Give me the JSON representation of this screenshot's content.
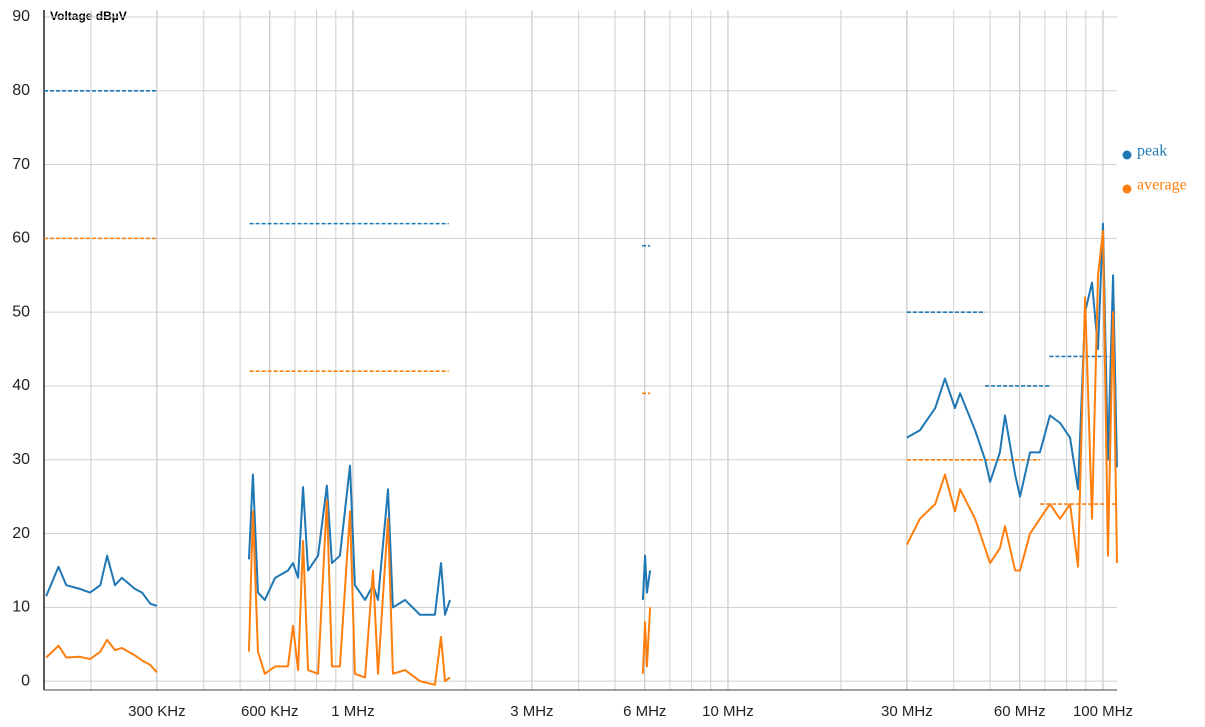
{
  "chart_data": {
    "type": "line",
    "y_label": "Voltage dBµV",
    "xlog": true,
    "xlim": [
      150000,
      109000000
    ],
    "ylim": [
      -1.2,
      90
    ],
    "yticks": [
      0,
      10,
      20,
      30,
      40,
      50,
      60,
      70,
      80,
      90
    ],
    "xticks": [
      {
        "value": 300000,
        "label": "300 KHz"
      },
      {
        "value": 600000,
        "label": "600 KHz"
      },
      {
        "value": 1000000,
        "label": "1 MHz"
      },
      {
        "value": 3000000,
        "label": "3 MHz"
      },
      {
        "value": 6000000,
        "label": "6 MHz"
      },
      {
        "value": 10000000,
        "label": "10 MHz"
      },
      {
        "value": 30000000,
        "label": "30 MHz"
      },
      {
        "value": 60000000,
        "label": "60 MHz"
      },
      {
        "value": 100000000,
        "label": "100 MHz"
      }
    ],
    "xgrid": [
      200000,
      400000,
      500000,
      700000,
      800000,
      900000,
      2000000,
      4000000,
      5000000,
      7000000,
      8000000,
      9000000,
      20000000,
      40000000,
      50000000,
      70000000,
      80000000,
      90000000
    ],
    "grid": true,
    "legend": "right",
    "x": [
      152000,
      164000,
      172000,
      187000,
      199000,
      212000,
      221000,
      232000,
      242000,
      262000,
      274000,
      288000,
      300000,
      null,
      528000,
      541000,
      558000,
      582000,
      620000,
      671000,
      692000,
      714000,
      736000,
      759000,
      807000,
      852000,
      879000,
      923000,
      982000,
      1012000,
      1077000,
      1131000,
      1166000,
      1240000,
      1278000,
      1377000,
      1509000,
      1654000,
      1717000,
      1760000,
      1815000,
      null,
      5930000,
      6010000,
      6080000,
      6200000,
      null,
      30000000,
      32500000,
      35700000,
      37900000,
      40300000,
      41600000,
      45600000,
      48500000,
      50000000,
      53100000,
      54800000,
      58300000,
      60100000,
      63900000,
      67900000,
      72200000,
      76800000,
      81700000,
      85800000,
      89600000,
      93500000,
      97000000,
      100000000,
      103100000,
      106400000,
      109000000
    ],
    "series": [
      {
        "name": "peak",
        "color": "#1f77b4",
        "values": [
          11.5,
          15.5,
          13,
          12.5,
          12,
          13,
          17,
          13,
          14,
          12.5,
          12,
          10.5,
          10.2,
          null,
          16.5,
          28,
          12,
          11,
          14,
          15,
          16,
          14,
          26.3,
          15,
          17,
          26.5,
          16,
          17,
          29.2,
          13,
          11,
          13,
          11,
          26,
          10,
          11,
          9,
          9,
          16,
          9,
          11,
          null,
          11,
          17,
          12,
          15,
          null,
          33,
          34,
          37,
          41,
          37,
          39,
          34,
          30,
          27,
          31,
          36,
          28,
          25,
          31,
          31,
          36,
          35,
          33,
          26,
          50,
          54,
          45,
          62,
          30,
          55,
          29
        ]
      },
      {
        "name": "average",
        "color": "#ff7f0e",
        "values": [
          3.2,
          4.8,
          3.2,
          3.3,
          3,
          4,
          5.6,
          4.2,
          4.5,
          3.5,
          2.8,
          2.2,
          1.2,
          null,
          4,
          23,
          4,
          1,
          2,
          2,
          7.5,
          1.5,
          19,
          1.5,
          1,
          24.5,
          2,
          2,
          23,
          1,
          0.5,
          15,
          1,
          22,
          1,
          1.5,
          0,
          -0.5,
          6,
          0,
          0.5,
          null,
          1,
          8,
          2,
          10,
          null,
          18.5,
          22,
          24,
          28,
          23,
          26,
          22,
          18,
          16,
          18,
          21,
          15,
          15,
          20,
          22,
          24,
          22,
          24,
          15.5,
          52,
          22,
          55,
          61,
          17,
          50,
          16
        ]
      }
    ],
    "limits": [
      {
        "color": "#1f77b4",
        "dashed": true,
        "segments": [
          {
            "x": [
              150000,
              300000
            ],
            "y": 80
          },
          {
            "x": [
              530000,
              1800000
            ],
            "y": 62
          },
          {
            "x": [
              5900000,
              6200000
            ],
            "y": 59
          },
          {
            "x": [
              30000000,
              48500000
            ],
            "y": 50
          },
          {
            "x": [
              48500000,
              72000000
            ],
            "y": 40
          },
          {
            "x": [
              72000000,
              108000000
            ],
            "y": 44
          }
        ]
      },
      {
        "color": "#ff7f0e",
        "dashed": true,
        "segments": [
          {
            "x": [
              150000,
              300000
            ],
            "y": 60
          },
          {
            "x": [
              530000,
              1800000
            ],
            "y": 42
          },
          {
            "x": [
              5900000,
              6200000
            ],
            "y": 39
          },
          {
            "x": [
              30000000,
              68000000
            ],
            "y": 30
          },
          {
            "x": [
              68000000,
              108000000
            ],
            "y": 24
          }
        ]
      }
    ]
  }
}
